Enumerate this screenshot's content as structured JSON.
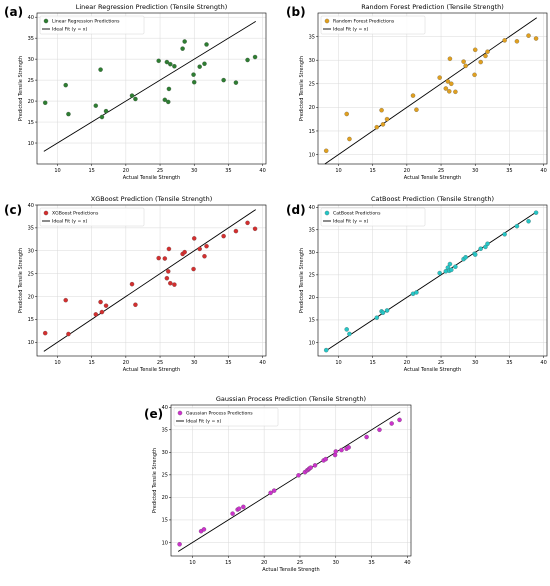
{
  "chart_data": [
    {
      "type": "scatter",
      "panel_label": "(a)",
      "title": "Linear Regression Prediction (Tensile Strength)",
      "xlabel": "Actual Tensile Strength",
      "ylabel": "Predicted Tensile Strength",
      "xlim": [
        7,
        40.5
      ],
      "ylim": [
        5,
        41
      ],
      "xticks": [
        10,
        15,
        20,
        25,
        30,
        35,
        40
      ],
      "yticks": [
        10,
        15,
        20,
        25,
        30,
        35,
        40
      ],
      "grid": true,
      "legend_position": "top-left",
      "series": [
        {
          "name": "Linear Regression Predictions",
          "color": "#2e7d32",
          "points": [
            [
              8.2,
              19.6
            ],
            [
              11.2,
              23.8
            ],
            [
              11.6,
              16.9
            ],
            [
              15.6,
              18.9
            ],
            [
              16.3,
              27.5
            ],
            [
              16.5,
              16.2
            ],
            [
              17.1,
              17.6
            ],
            [
              20.9,
              21.3
            ],
            [
              21.4,
              20.5
            ],
            [
              24.8,
              29.6
            ],
            [
              25.7,
              20.3
            ],
            [
              26.0,
              29.3
            ],
            [
              26.2,
              19.8
            ],
            [
              26.3,
              22.9
            ],
            [
              26.5,
              28.8
            ],
            [
              27.1,
              28.3
            ],
            [
              28.3,
              32.5
            ],
            [
              28.6,
              34.2
            ],
            [
              29.9,
              26.3
            ],
            [
              30.0,
              24.5
            ],
            [
              30.8,
              28.2
            ],
            [
              31.5,
              28.9
            ],
            [
              31.8,
              33.5
            ],
            [
              34.3,
              25.0
            ],
            [
              36.1,
              24.4
            ],
            [
              37.8,
              29.8
            ],
            [
              38.9,
              30.5
            ]
          ]
        },
        {
          "name": "Ideal Fit (y = x)",
          "line": [
            8,
            39
          ]
        }
      ]
    },
    {
      "type": "scatter",
      "panel_label": "(b)",
      "title": "Random Forest Prediction (Tensile Strength)",
      "xlabel": "Actual Tensile Strength",
      "ylabel": "Predicted Tensile Strength",
      "xlim": [
        7,
        40.5
      ],
      "ylim": [
        8,
        40
      ],
      "xticks": [
        10,
        15,
        20,
        25,
        30,
        35,
        40
      ],
      "yticks": [
        10,
        15,
        20,
        25,
        30,
        35
      ],
      "grid": true,
      "legend_position": "top-left",
      "series": [
        {
          "name": "Random Forest Predictions",
          "color": "#e0a020",
          "points": [
            [
              8.2,
              10.8
            ],
            [
              11.2,
              18.6
            ],
            [
              11.6,
              13.3
            ],
            [
              15.6,
              15.8
            ],
            [
              16.3,
              19.4
            ],
            [
              16.5,
              16.4
            ],
            [
              17.1,
              17.5
            ],
            [
              20.9,
              22.5
            ],
            [
              21.4,
              19.5
            ],
            [
              24.8,
              26.3
            ],
            [
              25.7,
              24.0
            ],
            [
              26.0,
              25.5
            ],
            [
              26.2,
              23.4
            ],
            [
              26.3,
              30.3
            ],
            [
              26.5,
              25.0
            ],
            [
              27.1,
              23.3
            ],
            [
              28.3,
              29.7
            ],
            [
              28.6,
              28.8
            ],
            [
              29.9,
              26.9
            ],
            [
              30.0,
              32.2
            ],
            [
              30.8,
              29.6
            ],
            [
              31.5,
              30.9
            ],
            [
              31.8,
              31.8
            ],
            [
              34.3,
              34.2
            ],
            [
              36.1,
              34.0
            ],
            [
              37.8,
              35.2
            ],
            [
              38.9,
              34.6
            ]
          ]
        },
        {
          "name": "Ideal Fit (y = x)",
          "line": [
            8,
            39
          ]
        }
      ]
    },
    {
      "type": "scatter",
      "panel_label": "(c)",
      "title": "XGBoost Prediction (Tensile Strength)",
      "xlabel": "Actual Tensile Strength",
      "ylabel": "Predicted Tensile Strength",
      "xlim": [
        7,
        40.5
      ],
      "ylim": [
        7,
        40
      ],
      "xticks": [
        10,
        15,
        20,
        25,
        30,
        35,
        40
      ],
      "yticks": [
        10,
        15,
        20,
        25,
        30,
        35,
        40
      ],
      "grid": true,
      "legend_position": "top-left",
      "series": [
        {
          "name": "XGBoost Predictions",
          "color": "#d32f2f",
          "points": [
            [
              8.2,
              12.0
            ],
            [
              11.2,
              19.2
            ],
            [
              11.6,
              11.8
            ],
            [
              15.6,
              16.1
            ],
            [
              16.3,
              18.8
            ],
            [
              16.5,
              16.6
            ],
            [
              17.1,
              18.0
            ],
            [
              20.9,
              22.7
            ],
            [
              21.4,
              18.2
            ],
            [
              24.8,
              28.4
            ],
            [
              25.7,
              28.3
            ],
            [
              26.0,
              24.0
            ],
            [
              26.2,
              25.5
            ],
            [
              26.3,
              30.4
            ],
            [
              26.5,
              22.9
            ],
            [
              27.1,
              22.6
            ],
            [
              28.3,
              29.3
            ],
            [
              28.6,
              29.7
            ],
            [
              29.9,
              26.0
            ],
            [
              30.0,
              32.7
            ],
            [
              30.8,
              30.4
            ],
            [
              31.5,
              28.8
            ],
            [
              31.8,
              31.0
            ],
            [
              34.3,
              33.2
            ],
            [
              36.1,
              34.3
            ],
            [
              37.8,
              36.1
            ],
            [
              38.9,
              34.8
            ]
          ]
        },
        {
          "name": "Ideal Fit (y = x)",
          "line": [
            8,
            39
          ]
        }
      ]
    },
    {
      "type": "scatter",
      "panel_label": "(d)",
      "title": "CatBoost Prediction (Tensile Strength)",
      "xlabel": "Actual Tensile Strength",
      "ylabel": "Predicted Tensile Strength",
      "xlim": [
        7,
        40.5
      ],
      "ylim": [
        7,
        40.5
      ],
      "xticks": [
        10,
        15,
        20,
        25,
        30,
        35,
        40
      ],
      "yticks": [
        10,
        15,
        20,
        25,
        30,
        35,
        40
      ],
      "grid": true,
      "legend_position": "top-left",
      "series": [
        {
          "name": "CatBoost Predictions",
          "color": "#26c6c6",
          "points": [
            [
              8.2,
              8.3
            ],
            [
              11.2,
              12.9
            ],
            [
              11.6,
              11.9
            ],
            [
              15.6,
              15.5
            ],
            [
              16.3,
              16.9
            ],
            [
              16.5,
              16.6
            ],
            [
              17.1,
              17.1
            ],
            [
              20.9,
              20.8
            ],
            [
              21.4,
              21.1
            ],
            [
              24.8,
              25.4
            ],
            [
              25.7,
              25.8
            ],
            [
              26.0,
              26.6
            ],
            [
              26.2,
              25.9
            ],
            [
              26.3,
              27.4
            ],
            [
              26.5,
              26.1
            ],
            [
              27.1,
              26.8
            ],
            [
              28.3,
              28.5
            ],
            [
              28.6,
              28.9
            ],
            [
              29.9,
              29.7
            ],
            [
              30.0,
              29.5
            ],
            [
              30.8,
              30.8
            ],
            [
              31.5,
              31.2
            ],
            [
              31.8,
              31.9
            ],
            [
              34.3,
              34.0
            ],
            [
              36.1,
              35.8
            ],
            [
              37.8,
              36.9
            ],
            [
              38.9,
              38.8
            ]
          ]
        },
        {
          "name": "Ideal Fit (y = x)",
          "line": [
            8,
            39
          ]
        }
      ]
    },
    {
      "type": "scatter",
      "panel_label": "(e)",
      "title": "Gaussian Process Prediction (Tensile Strength)",
      "xlabel": "Actual Tensile Strength",
      "ylabel": "Predicted Tensile Strength",
      "xlim": [
        7,
        40.5
      ],
      "ylim": [
        7,
        40.5
      ],
      "xticks": [
        10,
        15,
        20,
        25,
        30,
        35,
        40
      ],
      "yticks": [
        10,
        15,
        20,
        25,
        30,
        35,
        40
      ],
      "grid": true,
      "legend_position": "top-left",
      "series": [
        {
          "name": "Gaussian Process Predictions",
          "color": "#cc33cc",
          "points": [
            [
              8.2,
              9.6
            ],
            [
              11.2,
              12.5
            ],
            [
              11.6,
              12.9
            ],
            [
              15.6,
              16.4
            ],
            [
              16.3,
              17.3
            ],
            [
              16.5,
              17.5
            ],
            [
              17.1,
              17.9
            ],
            [
              20.9,
              21.0
            ],
            [
              21.4,
              21.5
            ],
            [
              24.8,
              24.9
            ],
            [
              25.7,
              25.6
            ],
            [
              26.0,
              26.0
            ],
            [
              26.2,
              26.2
            ],
            [
              26.3,
              26.4
            ],
            [
              26.5,
              26.6
            ],
            [
              27.1,
              27.1
            ],
            [
              28.3,
              28.2
            ],
            [
              28.6,
              28.5
            ],
            [
              29.9,
              29.4
            ],
            [
              30.0,
              30.2
            ],
            [
              30.8,
              30.5
            ],
            [
              31.5,
              30.8
            ],
            [
              31.8,
              31.1
            ],
            [
              34.3,
              33.4
            ],
            [
              36.1,
              35.0
            ],
            [
              37.8,
              36.4
            ],
            [
              38.9,
              37.2
            ]
          ]
        },
        {
          "name": "Ideal Fit (y = x)",
          "line": [
            8,
            39
          ]
        }
      ]
    }
  ]
}
